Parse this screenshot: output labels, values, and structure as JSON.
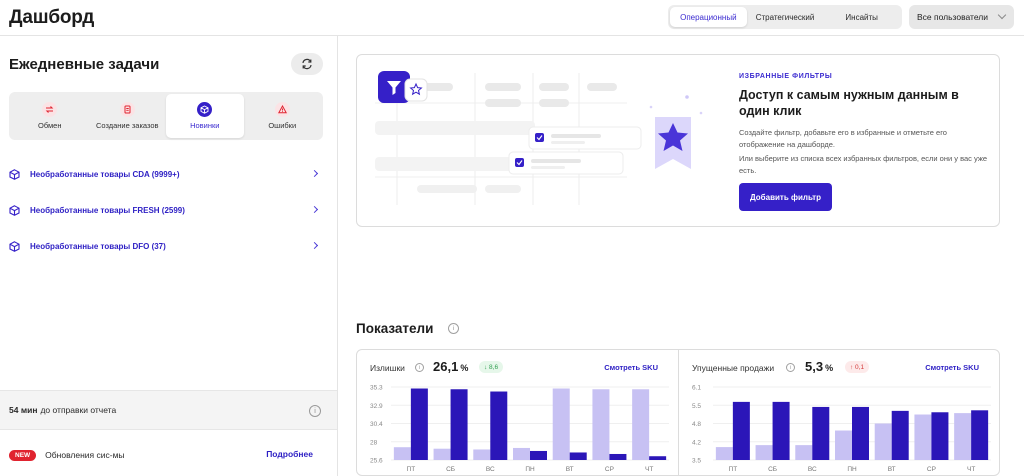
{
  "header": {
    "title": "Дашборд",
    "view_tabs": [
      {
        "label": "Операционный",
        "active": true
      },
      {
        "label": "Стратегический",
        "active": false
      },
      {
        "label": "Инсайты",
        "active": false
      }
    ],
    "user_filter": {
      "value": "Все пользователи"
    }
  },
  "daily_tasks": {
    "title": "Ежедневные задачи",
    "tabs": [
      {
        "label": "Обмен",
        "icon": "exchange-icon",
        "active": false
      },
      {
        "label": "Создание заказов",
        "icon": "order-doc-icon",
        "active": false
      },
      {
        "label": "Новинки",
        "icon": "cube-icon",
        "active": true
      },
      {
        "label": "Ошибки",
        "icon": "warning-icon",
        "active": false
      }
    ],
    "items": [
      {
        "label": "Необработанные товары CDA (9999+)"
      },
      {
        "label": "Необработанные товары FRESH (2599)"
      },
      {
        "label": "Необработанные товары DFO (37)"
      }
    ],
    "report": {
      "time": "54 мин",
      "text": "до отправки отчета"
    },
    "updates": {
      "badge": "NEW",
      "text": "Обновления сис-мы",
      "link": "Подробнее"
    }
  },
  "promo": {
    "kicker": "ИЗБРАННЫЕ ФИЛЬТРЫ",
    "title": "Доступ к самым нужным данным в один клик",
    "text_1": "Создайте фильтр, добавьте его в избранные и отметьте его отображение на дашборде.",
    "text_2": "Или выберите из списка всех избранных фильтров, если они у вас уже есть.",
    "button": "Добавить фильтр"
  },
  "indicators": {
    "title": "Показатели",
    "cards": [
      {
        "label": "Излишки",
        "value": "26,1",
        "unit": "%",
        "delta": "↓ 8,6",
        "delta_kind": "up-good",
        "link": "Смотреть SKU"
      },
      {
        "label": "Упущенные продажи",
        "value": "5,3",
        "unit": "%",
        "delta": "↑ 0,1",
        "delta_kind": "up-bad",
        "link": "Смотреть SKU"
      }
    ]
  },
  "chart_data": [
    {
      "type": "bar",
      "categories": [
        "ПТ",
        "СБ",
        "ВС",
        "ПН",
        "ВТ",
        "СР",
        "ЧТ"
      ],
      "yticks": [
        "35.3",
        "32.9",
        "30.4",
        "28",
        "25.6"
      ],
      "ylim": [
        25.6,
        35.3
      ],
      "series": [
        {
          "values": [
            27.3,
            27.1,
            27.0,
            27.2,
            35.1,
            35.0,
            35.0
          ],
          "color": "#c7c1f3"
        },
        {
          "values": [
            35.1,
            35.0,
            34.7,
            26.8,
            26.6,
            26.4,
            26.1
          ],
          "color": "#2b16b8"
        }
      ],
      "grid": true
    },
    {
      "type": "bar",
      "categories": [
        "ПТ",
        "СБ",
        "ВС",
        "ПН",
        "ВТ",
        "СР",
        "ЧТ"
      ],
      "yticks": [
        "6.1",
        "5.5",
        "4.8",
        "4.2",
        "3.5"
      ],
      "ylim": [
        3.5,
        6.1
      ],
      "series": [
        {
          "values": [
            3.96,
            4.03,
            4.03,
            4.55,
            4.8,
            5.12,
            5.17
          ],
          "color": "#c7c1f3"
        },
        {
          "values": [
            5.57,
            5.57,
            5.39,
            5.39,
            5.25,
            5.2,
            5.27
          ],
          "color": "#2b16b8"
        }
      ],
      "grid": true
    }
  ],
  "colors": {
    "accent": "#3520c8",
    "bar_light": "#c7c1f3",
    "bar_dark": "#2b16b8",
    "badge_red": "#e0232f"
  }
}
